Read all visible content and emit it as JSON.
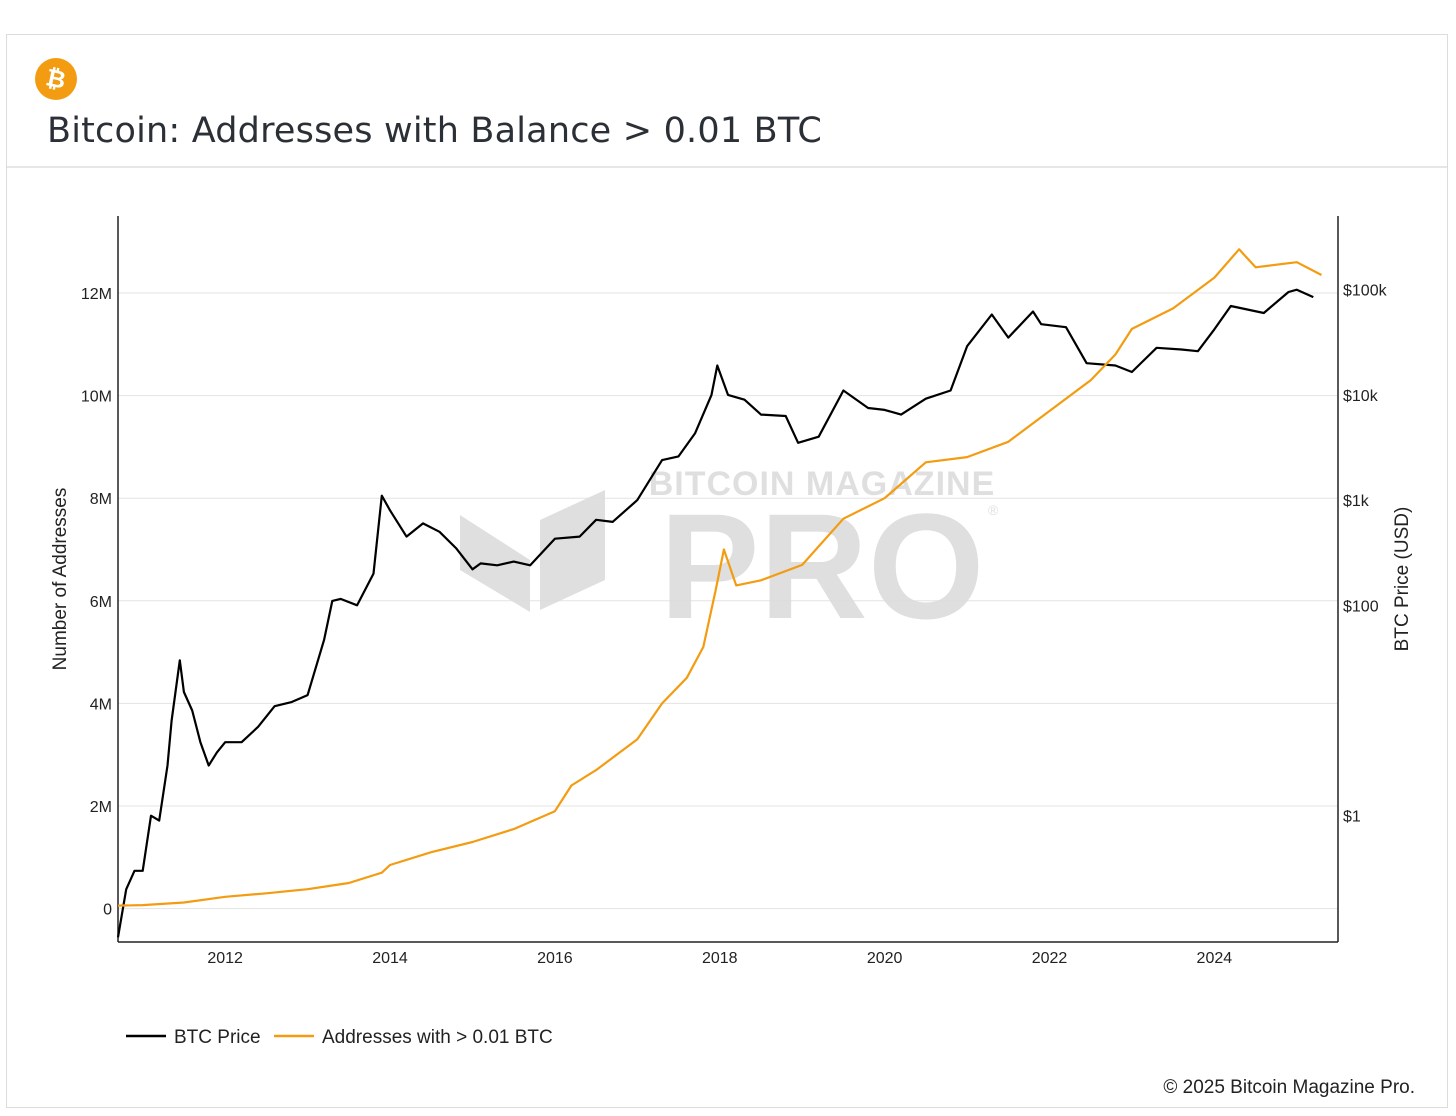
{
  "header": {
    "logo_icon": "bitcoin-icon",
    "logo_color": "#f39c12",
    "title": "Bitcoin: Addresses with Balance > 0.01 BTC"
  },
  "watermark": {
    "line1": "BITCOIN MAGAZINE",
    "line2": "PRO",
    "mark": "®"
  },
  "footer": {
    "copyright": "© 2025 Bitcoin Magazine Pro."
  },
  "chart_data": {
    "type": "line",
    "x_ticks": [
      "2012",
      "2014",
      "2016",
      "2018",
      "2020",
      "2022",
      "2024"
    ],
    "y_left": {
      "label": "Number of Addresses",
      "ticks": [
        "0",
        "2M",
        "4M",
        "6M",
        "8M",
        "10M",
        "12M"
      ],
      "range": [
        -650000,
        13500000
      ]
    },
    "y_right": {
      "label": "BTC Price (USD)",
      "scale": "log",
      "ticks": [
        "$1",
        "$100",
        "$1k",
        "$10k",
        "$100k"
      ],
      "range_log10": [
        -1.2,
        5.7
      ]
    },
    "legend": {
      "placement": "bottom-left"
    },
    "grid": true,
    "series": [
      {
        "name": "BTC Price",
        "color": "#000000",
        "axis": "right",
        "x": [
          2010.7,
          2010.8,
          2010.9,
          2011.0,
          2011.1,
          2011.2,
          2011.3,
          2011.35,
          2011.45,
          2011.5,
          2011.6,
          2011.7,
          2011.8,
          2011.9,
          2012.0,
          2012.2,
          2012.4,
          2012.6,
          2012.8,
          2013.0,
          2013.2,
          2013.3,
          2013.4,
          2013.6,
          2013.8,
          2013.9,
          2014.0,
          2014.2,
          2014.4,
          2014.6,
          2014.8,
          2015.0,
          2015.1,
          2015.3,
          2015.5,
          2015.7,
          2016.0,
          2016.3,
          2016.5,
          2016.7,
          2017.0,
          2017.3,
          2017.5,
          2017.7,
          2017.9,
          2017.97,
          2018.1,
          2018.3,
          2018.5,
          2018.8,
          2018.95,
          2019.2,
          2019.5,
          2019.8,
          2020.0,
          2020.2,
          2020.5,
          2020.8,
          2021.0,
          2021.3,
          2021.5,
          2021.8,
          2021.9,
          2022.2,
          2022.45,
          2022.8,
          2023.0,
          2023.3,
          2023.6,
          2023.8,
          2024.0,
          2024.2,
          2024.6,
          2024.9,
          2025.0,
          2025.2
        ],
        "y": [
          0.07,
          0.2,
          0.3,
          0.3,
          1.0,
          0.9,
          3.0,
          8,
          30,
          15,
          10,
          5,
          3,
          4,
          5,
          5,
          7,
          11,
          12,
          14,
          47,
          110,
          115,
          100,
          200,
          1100,
          800,
          450,
          600,
          500,
          350,
          220,
          250,
          240,
          260,
          240,
          430,
          450,
          650,
          620,
          1000,
          2400,
          2600,
          4300,
          10000,
          19000,
          10000,
          9000,
          6500,
          6300,
          3500,
          4000,
          11000,
          7500,
          7200,
          6500,
          9200,
          11000,
          29000,
          58000,
          35000,
          62000,
          47000,
          44000,
          20000,
          19000,
          16500,
          28000,
          27000,
          26000,
          42000,
          70000,
          60000,
          95000,
          100000,
          85000
        ]
      },
      {
        "name": "Addresses with > 0.01 BTC",
        "color": "#f39c12",
        "axis": "left",
        "x": [
          2010.7,
          2011.0,
          2011.5,
          2012.0,
          2012.5,
          2013.0,
          2013.5,
          2013.9,
          2014.0,
          2014.5,
          2015.0,
          2015.5,
          2016.0,
          2016.2,
          2016.5,
          2017.0,
          2017.3,
          2017.6,
          2017.8,
          2017.95,
          2018.05,
          2018.2,
          2018.5,
          2019.0,
          2019.5,
          2020.0,
          2020.5,
          2021.0,
          2021.5,
          2022.0,
          2022.5,
          2022.8,
          2023.0,
          2023.5,
          2024.0,
          2024.3,
          2024.5,
          2025.0,
          2025.3
        ],
        "y": [
          60000,
          70000,
          120000,
          230000,
          300000,
          380000,
          500000,
          700000,
          850000,
          1100000,
          1300000,
          1550000,
          1900000,
          2400000,
          2700000,
          3300000,
          4000000,
          4500000,
          5100000,
          6200000,
          7000000,
          6300000,
          6400000,
          6700000,
          7600000,
          8000000,
          8700000,
          8800000,
          9100000,
          9700000,
          10300000,
          10800000,
          11300000,
          11700000,
          12300000,
          12850000,
          12500000,
          12600000,
          12350000
        ]
      }
    ]
  }
}
